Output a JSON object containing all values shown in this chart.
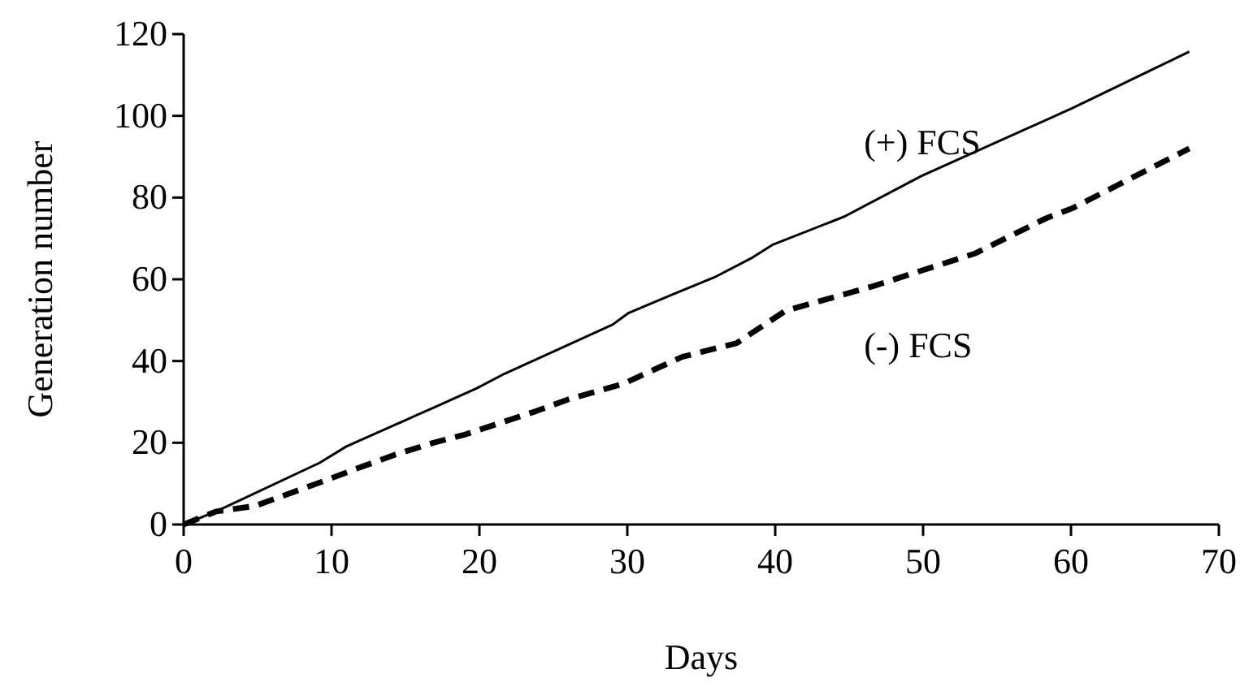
{
  "chart_data": {
    "type": "line",
    "xlabel": "Days",
    "ylabel": "Generation number",
    "xlim": [
      0,
      70
    ],
    "ylim": [
      0,
      120
    ],
    "xticks": [
      0,
      10,
      20,
      30,
      40,
      50,
      60,
      70
    ],
    "yticks": [
      0,
      20,
      40,
      60,
      80,
      100,
      120
    ],
    "grid": false,
    "series": [
      {
        "name": "(+) FCS",
        "color": "#000000",
        "line_style": "solid",
        "x": [
          0,
          2.2,
          9.2,
          11.0,
          16.9,
          19.8,
          21.7,
          29.0,
          30.1,
          33.0,
          35.9,
          38.5,
          39.8,
          44.7,
          49.9,
          60.1,
          68.0
        ],
        "values": [
          0,
          3.2,
          15.1,
          19.1,
          28.6,
          33.3,
          36.9,
          48.9,
          51.8,
          56.2,
          60.5,
          65.4,
          68.4,
          75.4,
          85.3,
          101.9,
          115.7
        ]
      },
      {
        "name": "(-) FCS",
        "color": "#000000",
        "line_style": "dashed",
        "x": [
          0,
          2.2,
          4.8,
          9.6,
          11.8,
          14.3,
          16.9,
          19.1,
          23.8,
          26.0,
          29.7,
          33.7,
          37.4,
          40.7,
          46.6,
          53.5,
          58.3,
          60.1,
          68.0
        ],
        "values": [
          0,
          3.2,
          4.5,
          10.8,
          13.8,
          17.1,
          20.0,
          22.1,
          27.7,
          30.6,
          34.4,
          41.0,
          44.4,
          52.3,
          58.3,
          66.3,
          74.9,
          77.4,
          92.0
        ]
      }
    ]
  }
}
